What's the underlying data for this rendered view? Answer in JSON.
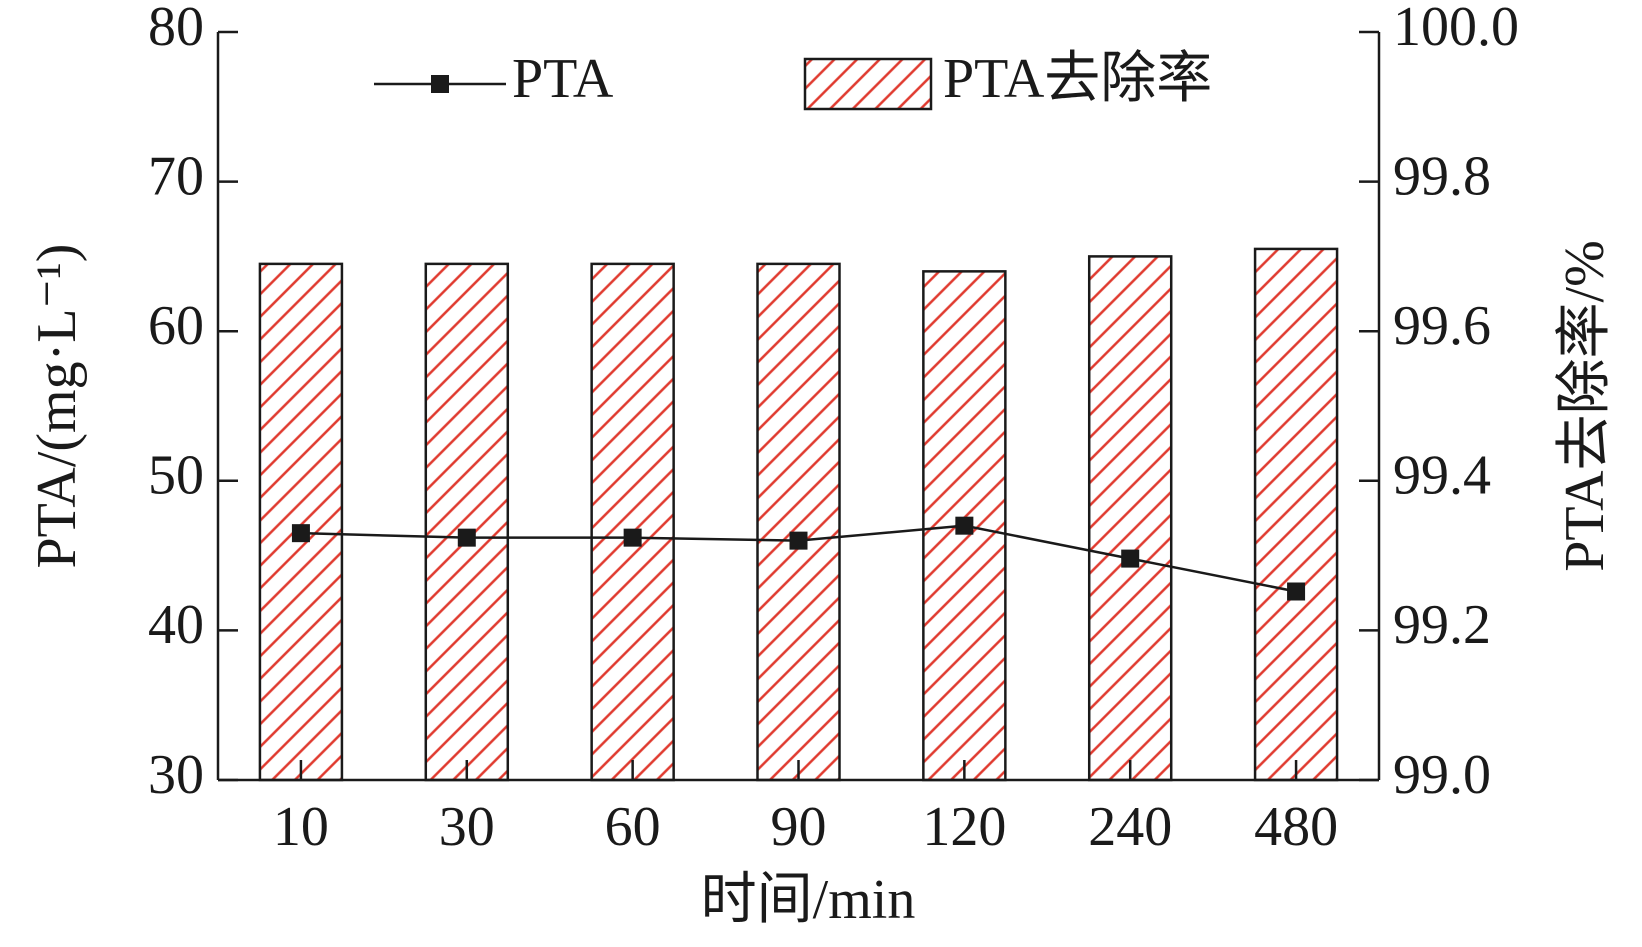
{
  "chart_data": {
    "type": "bar_line",
    "categories": [
      "10",
      "30",
      "60",
      "90",
      "120",
      "240",
      "480"
    ],
    "x_label": "时间/min",
    "y_label": "PTA/(mg·L⁻¹)",
    "y2_label": "PTA去除率/%",
    "ylim": [
      30,
      80
    ],
    "yticks": [
      30,
      40,
      50,
      60,
      70,
      80
    ],
    "y2lim": [
      99,
      100
    ],
    "y2ticks": [
      {
        "value": 99,
        "label": "99.0"
      },
      99.2,
      99.4,
      99.6,
      99.8,
      {
        "value": 100,
        "label": "100.0"
      }
    ],
    "legend": "top",
    "series": [
      {
        "name": "PTA",
        "type": "line",
        "color": "#1a1a1a",
        "values": [
          46.5,
          46.2,
          46.2,
          46.0,
          47.0,
          44.8,
          42.6
        ]
      },
      {
        "name": "PTA去除率",
        "type": "bar",
        "axis": "y2",
        "color": "#e03a2f",
        "values": [
          99.69,
          99.69,
          99.69,
          99.69,
          99.68,
          99.7,
          99.71
        ]
      }
    ]
  }
}
